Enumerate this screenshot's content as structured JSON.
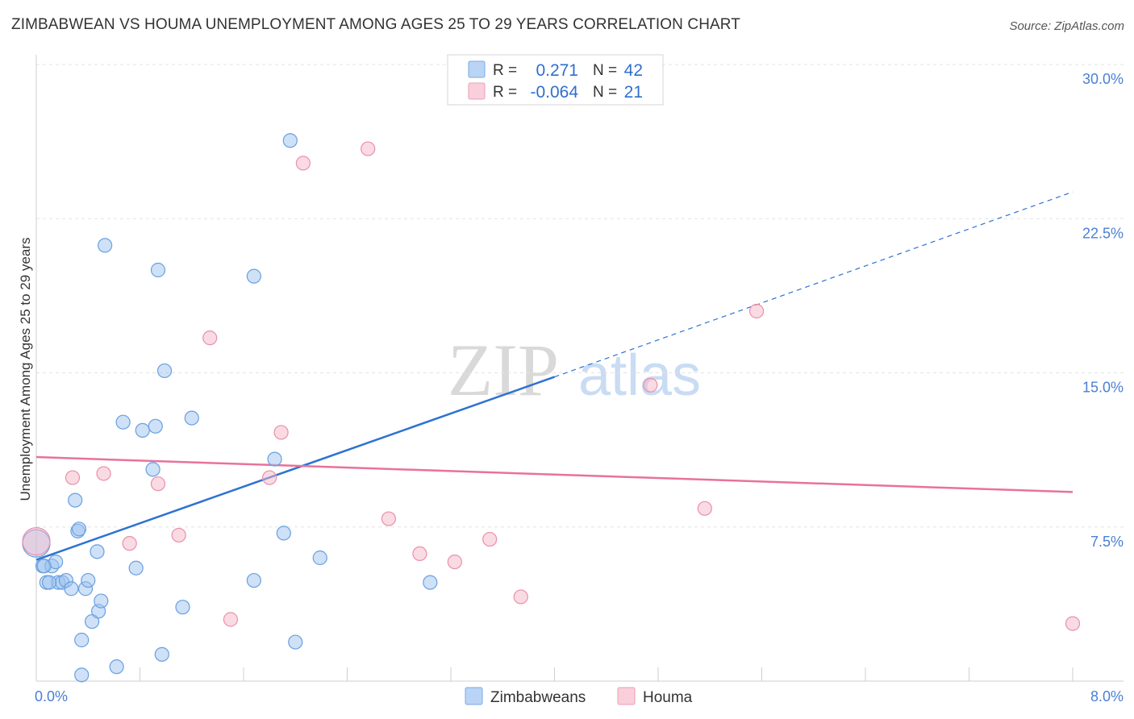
{
  "title": "ZIMBABWEAN VS HOUMA UNEMPLOYMENT AMONG AGES 25 TO 29 YEARS CORRELATION CHART",
  "source": "Source: ZipAtlas.com",
  "watermark": {
    "zip": "ZIP",
    "atlas": "atlas"
  },
  "legend_top": [
    {
      "r_label": "R =",
      "r_value": "0.271",
      "n_label": "N =",
      "n_value": "42",
      "color": "#9ec4f0"
    },
    {
      "r_label": "R =",
      "r_value": "-0.064",
      "n_label": "N =",
      "n_value": "21",
      "color": "#f5b8c8"
    }
  ],
  "legend_bottom": [
    "Zimbabweans",
    "Houma"
  ],
  "chart_data": {
    "type": "scatter",
    "title": "ZIMBABWEAN VS HOUMA UNEMPLOYMENT AMONG AGES 25 TO 29 YEARS CORRELATION CHART",
    "xlabel": "",
    "ylabel": "Unemployment Among Ages 25 to 29 years",
    "xlim": [
      0,
      8.0
    ],
    "ylim": [
      0,
      30.0
    ],
    "x_tick_labels": [
      "0.0%",
      "8.0%"
    ],
    "y_ticks": [
      7.5,
      15.0,
      22.5,
      30.0
    ],
    "y_tick_labels": [
      "7.5%",
      "15.0%",
      "22.5%",
      "30.0%"
    ],
    "series": [
      {
        "name": "Zimbabweans",
        "color": "#9ec4f0",
        "stroke": "#6a9fe0",
        "trend": {
          "x0": 0.0,
          "y0": 5.9,
          "x1": 4.0,
          "y1": 14.8,
          "dash_to_x": 8.0,
          "dash_to_y": 23.8,
          "color": "#2e72d2"
        },
        "points": [
          [
            0.0,
            6.7
          ],
          [
            0.05,
            5.6
          ],
          [
            0.08,
            4.8
          ],
          [
            0.12,
            5.6
          ],
          [
            0.15,
            5.8
          ],
          [
            0.17,
            4.8
          ],
          [
            0.2,
            4.8
          ],
          [
            0.23,
            4.9
          ],
          [
            0.27,
            4.5
          ],
          [
            0.3,
            8.8
          ],
          [
            0.32,
            7.3
          ],
          [
            0.33,
            7.4
          ],
          [
            0.35,
            0.3
          ],
          [
            0.38,
            4.5
          ],
          [
            0.4,
            4.9
          ],
          [
            0.43,
            2.9
          ],
          [
            0.47,
            6.3
          ],
          [
            0.48,
            3.4
          ],
          [
            0.5,
            3.9
          ],
          [
            0.35,
            2.0
          ],
          [
            0.53,
            21.2
          ],
          [
            0.62,
            0.7
          ],
          [
            0.67,
            12.6
          ],
          [
            0.77,
            5.5
          ],
          [
            0.82,
            12.2
          ],
          [
            0.9,
            10.3
          ],
          [
            0.92,
            12.4
          ],
          [
            0.94,
            20.0
          ],
          [
            0.97,
            1.3
          ],
          [
            0.99,
            15.1
          ],
          [
            1.13,
            3.6
          ],
          [
            1.2,
            12.8
          ],
          [
            1.68,
            19.7
          ],
          [
            1.68,
            4.9
          ],
          [
            1.84,
            10.8
          ],
          [
            1.91,
            7.2
          ],
          [
            1.96,
            26.3
          ],
          [
            2.0,
            1.9
          ],
          [
            2.19,
            6.0
          ],
          [
            3.04,
            4.8
          ],
          [
            0.06,
            5.6
          ],
          [
            0.1,
            4.8
          ]
        ]
      },
      {
        "name": "Houma",
        "color": "#f5b8c8",
        "stroke": "#ea8fab",
        "trend": {
          "x0": 0.0,
          "y0": 10.9,
          "x1": 8.0,
          "y1": 9.2,
          "color": "#e8729a"
        },
        "points": [
          [
            0.0,
            6.8
          ],
          [
            0.28,
            9.9
          ],
          [
            0.52,
            10.1
          ],
          [
            0.72,
            6.7
          ],
          [
            0.94,
            9.6
          ],
          [
            1.1,
            7.1
          ],
          [
            1.34,
            16.7
          ],
          [
            1.5,
            3.0
          ],
          [
            1.8,
            9.9
          ],
          [
            1.89,
            12.1
          ],
          [
            2.06,
            25.2
          ],
          [
            2.56,
            25.9
          ],
          [
            2.72,
            7.9
          ],
          [
            2.96,
            6.2
          ],
          [
            3.23,
            5.8
          ],
          [
            3.5,
            6.9
          ],
          [
            3.74,
            4.1
          ],
          [
            4.74,
            14.4
          ],
          [
            5.16,
            8.4
          ],
          [
            5.56,
            18.0
          ],
          [
            8.0,
            2.8
          ]
        ]
      }
    ]
  }
}
